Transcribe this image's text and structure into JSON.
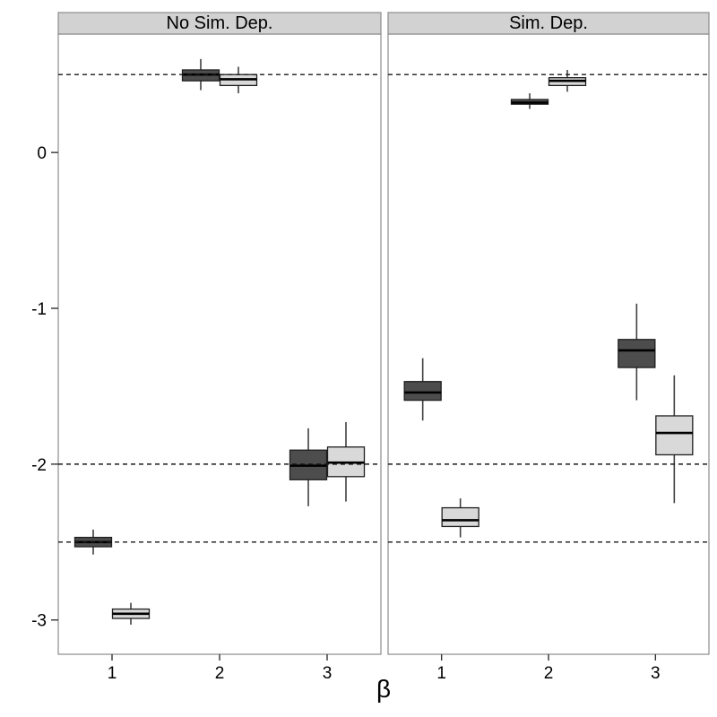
{
  "chart_data": {
    "type": "boxplot",
    "title": "",
    "xlabel": "β",
    "ylabel": "",
    "legend": "none",
    "grid": false,
    "facet_labels": [
      "No Sim. Dep.",
      "Sim. Dep."
    ],
    "x_tick_labels": [
      "1",
      "2",
      "3"
    ],
    "y_ticks": [
      {
        "label": "0",
        "value": 0
      },
      {
        "label": "-1",
        "value": -1
      },
      {
        "label": "-2",
        "value": -2
      },
      {
        "label": "-3",
        "value": -3
      }
    ],
    "ylim": [
      -3.22,
      0.76
    ],
    "reference_lines": {
      "style": "dashed",
      "color": "#1a1a1a",
      "values": [
        0.5,
        -2.0,
        -2.5
      ]
    },
    "series": [
      {
        "name": "dark",
        "fill": "#4d4d4d"
      },
      {
        "name": "light",
        "fill": "#d9d9d9"
      }
    ],
    "panels": [
      {
        "label": "No Sim. Dep.",
        "groups": [
          {
            "category": "1",
            "boxes": [
              {
                "series": "dark",
                "whisker_low": -2.58,
                "q1": -2.53,
                "median": -2.5,
                "q3": -2.47,
                "whisker_high": -2.42
              },
              {
                "series": "light",
                "whisker_low": -3.03,
                "q1": -2.99,
                "median": -2.96,
                "q3": -2.93,
                "whisker_high": -2.89
              }
            ]
          },
          {
            "category": "2",
            "boxes": [
              {
                "series": "dark",
                "whisker_low": 0.4,
                "q1": 0.46,
                "median": 0.5,
                "q3": 0.53,
                "whisker_high": 0.6
              },
              {
                "series": "light",
                "whisker_low": 0.38,
                "q1": 0.43,
                "median": 0.47,
                "q3": 0.5,
                "whisker_high": 0.55
              }
            ]
          },
          {
            "category": "3",
            "boxes": [
              {
                "series": "dark",
                "whisker_low": -2.27,
                "q1": -2.1,
                "median": -2.01,
                "q3": -1.91,
                "whisker_high": -1.77
              },
              {
                "series": "light",
                "whisker_low": -2.24,
                "q1": -2.08,
                "median": -1.99,
                "q3": -1.89,
                "whisker_high": -1.73
              }
            ]
          }
        ]
      },
      {
        "label": "Sim. Dep.",
        "groups": [
          {
            "category": "1",
            "boxes": [
              {
                "series": "dark",
                "whisker_low": -1.72,
                "q1": -1.59,
                "median": -1.54,
                "q3": -1.47,
                "whisker_high": -1.32
              },
              {
                "series": "light",
                "whisker_low": -2.47,
                "q1": -2.4,
                "median": -2.36,
                "q3": -2.28,
                "whisker_high": -2.22
              }
            ]
          },
          {
            "category": "2",
            "boxes": [
              {
                "series": "dark",
                "whisker_low": 0.28,
                "q1": 0.31,
                "median": 0.32,
                "q3": 0.34,
                "whisker_high": 0.38
              },
              {
                "series": "light",
                "whisker_low": 0.39,
                "q1": 0.43,
                "median": 0.46,
                "q3": 0.48,
                "whisker_high": 0.53
              }
            ]
          },
          {
            "category": "3",
            "boxes": [
              {
                "series": "dark",
                "whisker_low": -1.59,
                "q1": -1.38,
                "median": -1.27,
                "q3": -1.2,
                "whisker_high": -0.97
              },
              {
                "series": "light",
                "whisker_low": -2.25,
                "q1": -1.94,
                "median": -1.8,
                "q3": -1.69,
                "whisker_high": -1.43
              }
            ]
          }
        ]
      }
    ],
    "colors": {
      "dark_fill": "#4d4d4d",
      "light_fill": "#d9d9d9",
      "box_border": "#1f1f1f",
      "whisker": "#404040",
      "median": "#000000",
      "strip_fill": "#d2d2d2",
      "strip_border": "#8c8c8c",
      "panel_border": "#8c8c8c",
      "tick": "#333333"
    }
  }
}
